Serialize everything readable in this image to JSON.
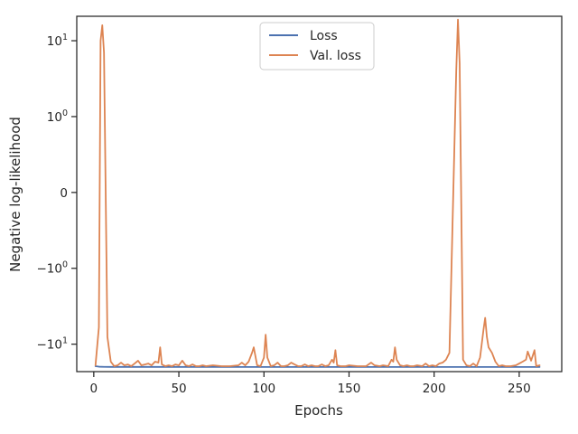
{
  "chart_data": {
    "type": "line",
    "xlabel": "Epochs",
    "ylabel": "Negative log-likelihood",
    "xlim": [
      -10,
      275
    ],
    "ylim": [
      -23,
      21
    ],
    "yscale": "symlog (linthresh 1)",
    "grid": false,
    "legend_position": "top-center",
    "x_ticks": [
      {
        "value": 0,
        "label": "0"
      },
      {
        "value": 50,
        "label": "50"
      },
      {
        "value": 100,
        "label": "100"
      },
      {
        "value": 150,
        "label": "150"
      },
      {
        "value": 200,
        "label": "200"
      },
      {
        "value": 250,
        "label": "250"
      }
    ],
    "y_ticks": [
      {
        "value": 10,
        "base": "10",
        "exp": "1",
        "sign": ""
      },
      {
        "value": 1,
        "base": "10",
        "exp": "0",
        "sign": ""
      },
      {
        "value": 0,
        "base": "0",
        "exp": "",
        "sign": ""
      },
      {
        "value": -1,
        "base": "10",
        "exp": "0",
        "sign": "−"
      },
      {
        "value": -10,
        "base": "10",
        "exp": "1",
        "sign": "−"
      }
    ],
    "series": [
      {
        "name": "Loss",
        "color": "#4c72b0",
        "points": [
          [
            1,
            -19.5
          ],
          [
            3,
            -19.8
          ],
          [
            6,
            -19.9
          ],
          [
            10,
            -19.95
          ],
          [
            30,
            -19.95
          ],
          [
            100,
            -20.0
          ],
          [
            150,
            -20.0
          ],
          [
            200,
            -20.0
          ],
          [
            262,
            -20.0
          ]
        ]
      },
      {
        "name": "Val. loss",
        "color": "#dd8452",
        "points": [
          [
            1,
            -19.0
          ],
          [
            3,
            -6.0
          ],
          [
            4,
            10.0
          ],
          [
            5,
            16.0
          ],
          [
            6,
            7.0
          ],
          [
            8,
            -8.0
          ],
          [
            10,
            -17.0
          ],
          [
            12,
            -19.5
          ],
          [
            14,
            -19.0
          ],
          [
            16,
            -17.5
          ],
          [
            18,
            -19.0
          ],
          [
            20,
            -18.5
          ],
          [
            22,
            -19.5
          ],
          [
            24,
            -18.0
          ],
          [
            26,
            -16.5
          ],
          [
            28,
            -19.0
          ],
          [
            30,
            -18.5
          ],
          [
            32,
            -18.0
          ],
          [
            34,
            -19.0
          ],
          [
            36,
            -17.0
          ],
          [
            38,
            -17.5
          ],
          [
            39,
            -11.0
          ],
          [
            40,
            -18.5
          ],
          [
            42,
            -19.5
          ],
          [
            44,
            -19.0
          ],
          [
            46,
            -19.5
          ],
          [
            48,
            -18.5
          ],
          [
            50,
            -19.0
          ],
          [
            52,
            -16.5
          ],
          [
            54,
            -19.0
          ],
          [
            56,
            -19.5
          ],
          [
            58,
            -18.5
          ],
          [
            60,
            -19.5
          ],
          [
            62,
            -19.5
          ],
          [
            64,
            -19.0
          ],
          [
            66,
            -19.5
          ],
          [
            70,
            -19.0
          ],
          [
            75,
            -19.5
          ],
          [
            80,
            -19.5
          ],
          [
            85,
            -19.0
          ],
          [
            87,
            -17.5
          ],
          [
            89,
            -19.0
          ],
          [
            91,
            -17.0
          ],
          [
            93,
            -13.0
          ],
          [
            94,
            -11.0
          ],
          [
            96,
            -19.0
          ],
          [
            98,
            -19.5
          ],
          [
            100,
            -15.0
          ],
          [
            101,
            -7.5
          ],
          [
            102,
            -15.0
          ],
          [
            104,
            -19.5
          ],
          [
            106,
            -19.0
          ],
          [
            108,
            -17.5
          ],
          [
            110,
            -19.5
          ],
          [
            112,
            -19.5
          ],
          [
            114,
            -19.0
          ],
          [
            116,
            -17.5
          ],
          [
            118,
            -18.5
          ],
          [
            120,
            -19.5
          ],
          [
            122,
            -19.5
          ],
          [
            124,
            -18.5
          ],
          [
            126,
            -19.5
          ],
          [
            128,
            -19.0
          ],
          [
            130,
            -19.5
          ],
          [
            132,
            -19.5
          ],
          [
            134,
            -18.5
          ],
          [
            136,
            -19.5
          ],
          [
            138,
            -19.0
          ],
          [
            140,
            -16.0
          ],
          [
            141,
            -17.5
          ],
          [
            142,
            -12.0
          ],
          [
            143,
            -19.0
          ],
          [
            145,
            -19.5
          ],
          [
            148,
            -19.5
          ],
          [
            150,
            -19.0
          ],
          [
            155,
            -19.5
          ],
          [
            160,
            -19.5
          ],
          [
            163,
            -17.5
          ],
          [
            165,
            -19.0
          ],
          [
            168,
            -19.5
          ],
          [
            170,
            -19.0
          ],
          [
            173,
            -19.5
          ],
          [
            175,
            -16.0
          ],
          [
            176,
            -17.0
          ],
          [
            177,
            -11.0
          ],
          [
            178,
            -16.0
          ],
          [
            180,
            -19.0
          ],
          [
            182,
            -19.5
          ],
          [
            184,
            -19.0
          ],
          [
            186,
            -19.5
          ],
          [
            188,
            -19.5
          ],
          [
            190,
            -19.0
          ],
          [
            193,
            -19.5
          ],
          [
            195,
            -18.0
          ],
          [
            197,
            -19.5
          ],
          [
            199,
            -19.0
          ],
          [
            201,
            -19.5
          ],
          [
            203,
            -18.0
          ],
          [
            205,
            -17.5
          ],
          [
            207,
            -16.0
          ],
          [
            209,
            -13.0
          ],
          [
            213,
            4.0
          ],
          [
            214,
            19.0
          ],
          [
            215,
            5.0
          ],
          [
            217,
            -16.0
          ],
          [
            219,
            -19.0
          ],
          [
            221,
            -19.5
          ],
          [
            223,
            -18.0
          ],
          [
            225,
            -19.5
          ],
          [
            227,
            -15.0
          ],
          [
            229,
            -6.5
          ],
          [
            230,
            -4.5
          ],
          [
            231,
            -8.0
          ],
          [
            232,
            -11.0
          ],
          [
            234,
            -13.0
          ],
          [
            236,
            -17.0
          ],
          [
            238,
            -19.5
          ],
          [
            240,
            -19.0
          ],
          [
            242,
            -19.5
          ],
          [
            245,
            -19.5
          ],
          [
            248,
            -19.0
          ],
          [
            250,
            -18.0
          ],
          [
            252,
            -17.0
          ],
          [
            254,
            -16.0
          ],
          [
            255,
            -12.5
          ],
          [
            257,
            -16.5
          ],
          [
            259,
            -12.0
          ],
          [
            260,
            -19.5
          ],
          [
            262,
            -19.0
          ]
        ]
      }
    ]
  }
}
